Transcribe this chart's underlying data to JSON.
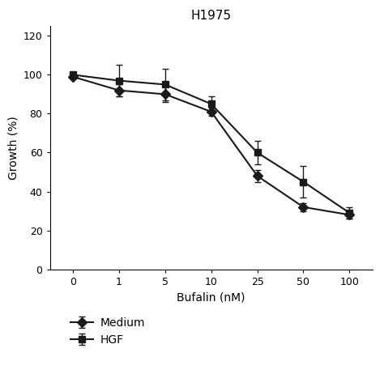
{
  "title": "H1975",
  "xlabel": "Bufalin (nM)",
  "ylabel": "Growth (%)",
  "x_values": [
    0,
    1,
    5,
    10,
    25,
    50,
    100
  ],
  "medium_y": [
    99,
    92,
    90,
    81,
    48,
    32,
    28
  ],
  "medium_yerr": [
    1,
    3,
    4,
    2,
    3,
    2,
    2
  ],
  "hgf_y": [
    100,
    97,
    95,
    85,
    60,
    45,
    29
  ],
  "hgf_yerr": [
    1,
    8,
    8,
    4,
    6,
    8,
    3
  ],
  "ylim": [
    0,
    125
  ],
  "yticks": [
    0,
    20,
    40,
    60,
    80,
    100,
    120
  ],
  "line_color": "#1a1a1a",
  "bg_color": "#ffffff",
  "legend_labels": [
    "Medium",
    "HGF"
  ],
  "medium_marker": "D",
  "hgf_marker": "s",
  "marker_size": 6,
  "linewidth": 1.5,
  "capsize": 3,
  "title_fontsize": 11,
  "label_fontsize": 10,
  "tick_fontsize": 9,
  "legend_fontsize": 10
}
